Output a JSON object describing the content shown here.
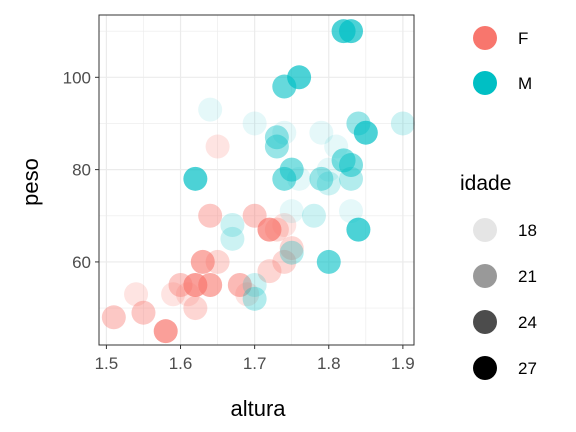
{
  "chart_data": {
    "type": "scatter",
    "xlabel": "altura",
    "ylabel": "peso",
    "xlim": [
      1.49,
      1.915
    ],
    "ylim": [
      42,
      113.5
    ],
    "x_ticks": [
      1.5,
      1.6,
      1.7,
      1.8,
      1.9
    ],
    "x_tick_labels": [
      "1.5",
      "1.6",
      "1.7",
      "1.8",
      "1.9"
    ],
    "y_ticks": [
      60,
      80,
      100
    ],
    "y_tick_labels": [
      "60",
      "80",
      "100"
    ],
    "grid": true,
    "colors": {
      "F": "#F8766D",
      "M": "#00BFC4"
    },
    "color_legend": {
      "title": "",
      "entries": [
        {
          "label": "F",
          "color": "#F8766D"
        },
        {
          "label": "M",
          "color": "#00BFC4"
        }
      ]
    },
    "alpha_legend": {
      "title": "idade",
      "entries": [
        {
          "label": "18",
          "value": 18
        },
        {
          "label": "21",
          "value": 21
        },
        {
          "label": "24",
          "value": 24
        },
        {
          "label": "27",
          "value": 27
        }
      ]
    },
    "series": [
      {
        "name": "F",
        "points": [
          {
            "x": 1.51,
            "y": 48,
            "idade": 21
          },
          {
            "x": 1.54,
            "y": 53,
            "idade": 19
          },
          {
            "x": 1.55,
            "y": 49,
            "idade": 21
          },
          {
            "x": 1.58,
            "y": 45,
            "idade": 24
          },
          {
            "x": 1.59,
            "y": 53,
            "idade": 19
          },
          {
            "x": 1.6,
            "y": 55,
            "idade": 21
          },
          {
            "x": 1.61,
            "y": 53,
            "idade": 19
          },
          {
            "x": 1.62,
            "y": 55,
            "idade": 24
          },
          {
            "x": 1.62,
            "y": 50,
            "idade": 20
          },
          {
            "x": 1.63,
            "y": 60,
            "idade": 23
          },
          {
            "x": 1.64,
            "y": 55,
            "idade": 23
          },
          {
            "x": 1.64,
            "y": 70,
            "idade": 21
          },
          {
            "x": 1.65,
            "y": 85,
            "idade": 19
          },
          {
            "x": 1.65,
            "y": 60,
            "idade": 20
          },
          {
            "x": 1.68,
            "y": 55,
            "idade": 22
          },
          {
            "x": 1.69,
            "y": 53,
            "idade": 19
          },
          {
            "x": 1.7,
            "y": 70,
            "idade": 21
          },
          {
            "x": 1.72,
            "y": 58,
            "idade": 20
          },
          {
            "x": 1.72,
            "y": 67,
            "idade": 24
          },
          {
            "x": 1.73,
            "y": 67,
            "idade": 20
          },
          {
            "x": 1.74,
            "y": 60,
            "idade": 20
          },
          {
            "x": 1.74,
            "y": 68,
            "idade": 19
          },
          {
            "x": 1.75,
            "y": 63,
            "idade": 20
          }
        ]
      },
      {
        "name": "M",
        "points": [
          {
            "x": 1.62,
            "y": 78,
            "idade": 24
          },
          {
            "x": 1.64,
            "y": 93,
            "idade": 18
          },
          {
            "x": 1.67,
            "y": 68,
            "idade": 19
          },
          {
            "x": 1.67,
            "y": 65,
            "idade": 19
          },
          {
            "x": 1.7,
            "y": 90,
            "idade": 18
          },
          {
            "x": 1.7,
            "y": 55,
            "idade": 19
          },
          {
            "x": 1.7,
            "y": 52,
            "idade": 20
          },
          {
            "x": 1.73,
            "y": 85,
            "idade": 21
          },
          {
            "x": 1.73,
            "y": 87,
            "idade": 21
          },
          {
            "x": 1.74,
            "y": 88,
            "idade": 18
          },
          {
            "x": 1.74,
            "y": 98,
            "idade": 23
          },
          {
            "x": 1.74,
            "y": 78,
            "idade": 22
          },
          {
            "x": 1.75,
            "y": 80,
            "idade": 22
          },
          {
            "x": 1.75,
            "y": 71,
            "idade": 18
          },
          {
            "x": 1.75,
            "y": 62,
            "idade": 20
          },
          {
            "x": 1.76,
            "y": 100,
            "idade": 24
          },
          {
            "x": 1.76,
            "y": 78,
            "idade": 18
          },
          {
            "x": 1.78,
            "y": 70,
            "idade": 19
          },
          {
            "x": 1.79,
            "y": 88,
            "idade": 18
          },
          {
            "x": 1.79,
            "y": 78,
            "idade": 21
          },
          {
            "x": 1.8,
            "y": 77,
            "idade": 19
          },
          {
            "x": 1.8,
            "y": 80,
            "idade": 18
          },
          {
            "x": 1.8,
            "y": 60,
            "idade": 23
          },
          {
            "x": 1.81,
            "y": 85,
            "idade": 18
          },
          {
            "x": 1.82,
            "y": 110,
            "idade": 24
          },
          {
            "x": 1.82,
            "y": 82,
            "idade": 22
          },
          {
            "x": 1.83,
            "y": 110,
            "idade": 24
          },
          {
            "x": 1.83,
            "y": 81,
            "idade": 22
          },
          {
            "x": 1.83,
            "y": 78,
            "idade": 20
          },
          {
            "x": 1.83,
            "y": 71,
            "idade": 18
          },
          {
            "x": 1.84,
            "y": 90,
            "idade": 21
          },
          {
            "x": 1.84,
            "y": 67,
            "idade": 24
          },
          {
            "x": 1.85,
            "y": 88,
            "idade": 24
          },
          {
            "x": 1.9,
            "y": 90,
            "idade": 19
          }
        ]
      }
    ]
  }
}
